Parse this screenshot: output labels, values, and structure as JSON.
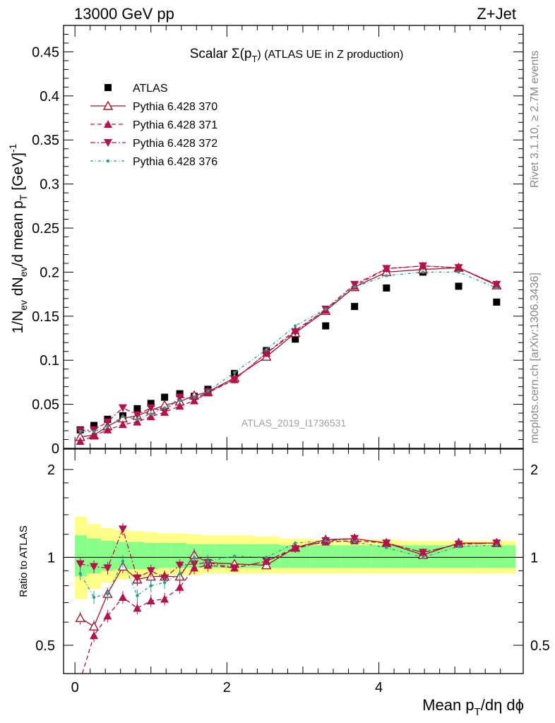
{
  "header": {
    "left": "13000 GeV pp",
    "right": "Z+Jet"
  },
  "side_labels": {
    "top": "Rivet 3.1.10, ≥ 2.7M events",
    "bottom": "mcplots.cern.ch [arXiv:1306.3436]"
  },
  "chart_data": [
    {
      "type": "scatter",
      "panel": "main",
      "title": "Scalar Σ(p_T) (ATLAS UE in Z production)",
      "title_main": "Scalar Σ(p",
      "title_sub": "T",
      "title_tail": ") (ATLAS UE in Z production)",
      "watermark": "ATLAS_2019_I1736531",
      "ylabel": "1/N_ev dN_ev/d mean p_T [GeV]^-1",
      "xlim": [
        -0.15,
        5.9
      ],
      "ylim": [
        0,
        0.48
      ],
      "yticks": [
        0,
        0.05,
        0.1,
        0.15,
        0.2,
        0.25,
        0.3,
        0.35,
        0.4,
        0.45
      ],
      "ytick_labels": [
        "0",
        "0.05",
        "0.1",
        "0.15",
        "0.2",
        "0.25",
        "0.3",
        "0.35",
        "0.4",
        "0.45"
      ],
      "x": [
        0.07,
        0.25,
        0.43,
        0.63,
        0.82,
        1.0,
        1.18,
        1.38,
        1.57,
        1.75,
        2.1,
        2.52,
        2.9,
        3.3,
        3.68,
        4.1,
        4.58,
        5.05,
        5.55
      ],
      "legend_position": "top-left",
      "series": [
        {
          "name": "ATLAS",
          "marker": "square",
          "color": "#000000",
          "values": [
            0.021,
            0.026,
            0.033,
            0.037,
            0.045,
            0.051,
            0.058,
            0.062,
            0.059,
            0.067,
            0.085,
            0.111,
            0.124,
            0.139,
            0.161,
            0.182,
            0.2,
            0.184,
            0.166
          ]
        },
        {
          "name": "Pythia 6.428 370",
          "marker": "triangle-open",
          "color": "#a0182c",
          "dash": "",
          "values": [
            0.013,
            0.015,
            0.025,
            0.034,
            0.037,
            0.043,
            0.049,
            0.053,
            0.06,
            0.064,
            0.08,
            0.104,
            0.131,
            0.156,
            0.183,
            0.2,
            0.203,
            0.205,
            0.185
          ]
        },
        {
          "name": "Pythia 6.428 371",
          "marker": "triangle-up",
          "color": "#b4124a",
          "dash": "6,4",
          "values": [
            0.008,
            0.014,
            0.021,
            0.027,
            0.03,
            0.036,
            0.041,
            0.048,
            0.054,
            0.063,
            0.078,
            0.108,
            0.134,
            0.157,
            0.184,
            0.204,
            0.207,
            0.205,
            0.186
          ]
        },
        {
          "name": "Pythia 6.428 372",
          "marker": "triangle-down",
          "color": "#b4124a",
          "dash": "7,3,2,3",
          "values": [
            0.02,
            0.021,
            0.03,
            0.046,
            0.038,
            0.046,
            0.042,
            0.058,
            0.056,
            0.064,
            0.078,
            0.108,
            0.132,
            0.158,
            0.186,
            0.204,
            0.207,
            0.205,
            0.186
          ]
        },
        {
          "name": "Pythia 6.428 376",
          "marker": "dot",
          "color": "#2f9a8c",
          "dash": "4,3,1,3",
          "values": [
            0.019,
            0.019,
            0.025,
            0.036,
            0.033,
            0.039,
            0.046,
            0.054,
            0.058,
            0.065,
            0.086,
            0.112,
            0.139,
            0.158,
            0.183,
            0.196,
            0.2,
            0.2,
            0.182
          ]
        }
      ]
    },
    {
      "type": "scatter",
      "panel": "ratio",
      "ylabel": "Ratio to ATLAS",
      "xlabel": "Mean p_T/dη dϕ",
      "xlim": [
        -0.15,
        5.9
      ],
      "ylim": [
        0.4,
        2.35
      ],
      "ylog": true,
      "yticks": [
        0.5,
        1,
        2
      ],
      "ytick_labels": [
        "0.5",
        "1",
        "2"
      ],
      "xticks": [
        0,
        2,
        4
      ],
      "xtick_labels": [
        "0",
        "2",
        "4"
      ],
      "bands": {
        "x_edges": [
          0.0,
          0.16,
          0.34,
          0.52,
          0.72,
          0.91,
          1.09,
          1.27,
          1.47,
          1.66,
          1.85,
          2.35,
          2.7,
          3.1,
          3.5,
          3.9,
          4.3,
          4.85,
          5.3,
          5.8
        ],
        "yellow_lo": [
          0.72,
          0.78,
          0.82,
          0.84,
          0.85,
          0.86,
          0.87,
          0.87,
          0.87,
          0.88,
          0.88,
          0.88,
          0.88,
          0.88,
          0.88,
          0.88,
          0.88,
          0.88,
          0.88
        ],
        "yellow_hi": [
          1.38,
          1.3,
          1.26,
          1.24,
          1.23,
          1.22,
          1.21,
          1.21,
          1.2,
          1.19,
          1.19,
          1.18,
          1.16,
          1.15,
          1.15,
          1.15,
          1.14,
          1.14,
          1.14
        ],
        "green_lo": [
          0.86,
          0.88,
          0.9,
          0.91,
          0.91,
          0.91,
          0.92,
          0.92,
          0.92,
          0.92,
          0.92,
          0.92,
          0.92,
          0.92,
          0.92,
          0.92,
          0.92,
          0.92,
          0.92
        ],
        "green_hi": [
          1.19,
          1.16,
          1.14,
          1.13,
          1.13,
          1.12,
          1.12,
          1.12,
          1.11,
          1.11,
          1.11,
          1.11,
          1.1,
          1.1,
          1.1,
          1.1,
          1.1,
          1.1,
          1.1
        ],
        "yellow_color": "#ffff88",
        "green_color": "#88ff88"
      },
      "x": [
        0.07,
        0.25,
        0.43,
        0.63,
        0.82,
        1.0,
        1.18,
        1.38,
        1.57,
        1.75,
        2.1,
        2.52,
        2.9,
        3.3,
        3.68,
        4.1,
        4.58,
        5.05,
        5.55
      ],
      "series": [
        {
          "name": "Pythia 6.428 370",
          "marker": "triangle-open",
          "color": "#a0182c",
          "dash": "",
          "values": [
            0.62,
            0.58,
            0.75,
            0.93,
            0.84,
            0.86,
            0.86,
            0.86,
            1.02,
            0.96,
            0.95,
            0.94,
            1.08,
            1.15,
            1.16,
            1.12,
            1.02,
            1.12,
            1.12
          ]
        },
        {
          "name": "Pythia 6.428 371",
          "marker": "triangle-up",
          "color": "#b4124a",
          "dash": "6,4",
          "values": [
            0.38,
            0.54,
            0.63,
            0.73,
            0.67,
            0.71,
            0.72,
            0.79,
            0.92,
            0.94,
            0.92,
            0.97,
            1.08,
            1.13,
            1.14,
            1.12,
            1.04,
            1.11,
            1.12
          ]
        },
        {
          "name": "Pythia 6.428 372",
          "marker": "triangle-down",
          "color": "#b4124a",
          "dash": "7,3,2,3",
          "values": [
            0.95,
            0.93,
            0.92,
            1.25,
            0.85,
            0.9,
            0.85,
            0.94,
            0.95,
            0.96,
            0.92,
            0.97,
            1.07,
            1.14,
            1.16,
            1.12,
            1.04,
            1.11,
            1.12
          ]
        },
        {
          "name": "Pythia 6.428 376",
          "marker": "dot",
          "color": "#2f9a8c",
          "dash": "4,3,1,3",
          "values": [
            0.88,
            0.73,
            0.75,
            0.97,
            0.74,
            0.8,
            0.82,
            0.88,
            1.0,
            0.97,
            1.01,
            1.0,
            1.12,
            1.14,
            1.13,
            1.08,
            1.0,
            1.09,
            1.1
          ]
        }
      ]
    }
  ]
}
